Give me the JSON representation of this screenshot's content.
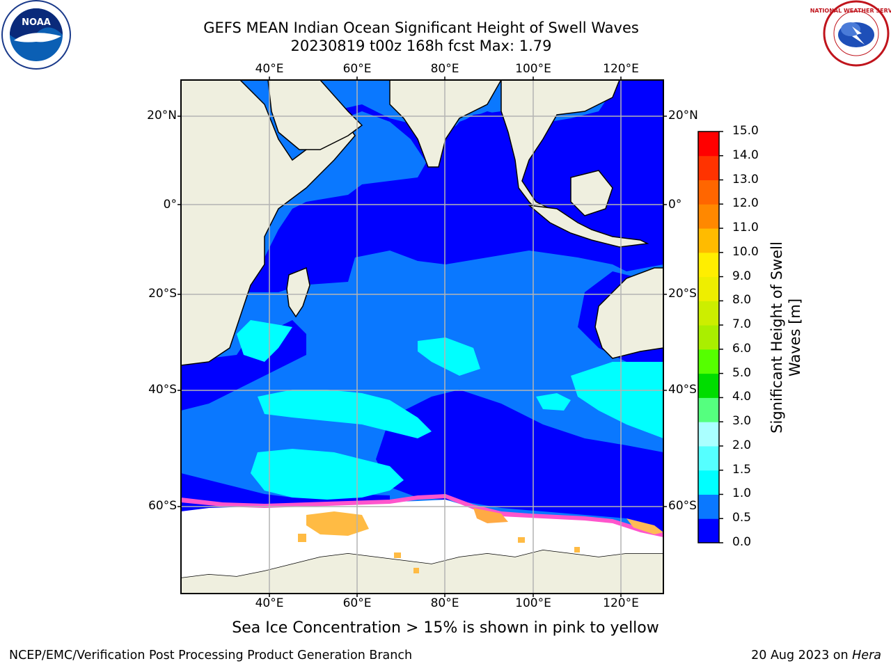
{
  "title": {
    "line1": "GEFS MEAN Indian Ocean Significant Height of Swell Waves",
    "line2": "20230819 t00z 168h fcst   Max: 1.79"
  },
  "map": {
    "lon_ticks": [
      "40°E",
      "60°E",
      "80°E",
      "100°E",
      "120°E"
    ],
    "lat_ticks_left": [
      "20°N",
      "0°",
      "20°S",
      "40°S",
      "60°S"
    ],
    "lat_ticks_right": [
      "20°N",
      "0°",
      "20°S",
      "40°S",
      "60°S"
    ],
    "extent": {
      "lon_min": 20,
      "lon_max": 130,
      "lat_min": -70,
      "lat_max": 28
    }
  },
  "colorbar": {
    "label": "Significant Height of Swell Waves [m]",
    "ticks": [
      "0.0",
      "0.5",
      "1.0",
      "1.5",
      "2.0",
      "3.0",
      "4.0",
      "5.0",
      "6.0",
      "7.0",
      "8.0",
      "9.0",
      "10.0",
      "11.0",
      "12.0",
      "13.0",
      "14.0",
      "15.0"
    ],
    "colors": [
      "#0000ff",
      "#0a78ff",
      "#00ffff",
      "#55ffff",
      "#aaffff",
      "#55ff7f",
      "#00dd00",
      "#55ff00",
      "#aaee00",
      "#ccee00",
      "#eeee00",
      "#ffee00",
      "#ffbb00",
      "#ff8800",
      "#ff6600",
      "#ff3300",
      "#ff0000"
    ]
  },
  "caption": "Sea Ice Concentration > 15% is shown in pink to yellow",
  "footer": {
    "left": "NCEP/EMC/Verification Post Processing Product Generation Branch",
    "right_prefix": "20 Aug 2023 on ",
    "right_host": "Hera"
  },
  "logos": {
    "noaa": "NOAA",
    "nws": "NATIONAL WEATHER SERVICE"
  }
}
